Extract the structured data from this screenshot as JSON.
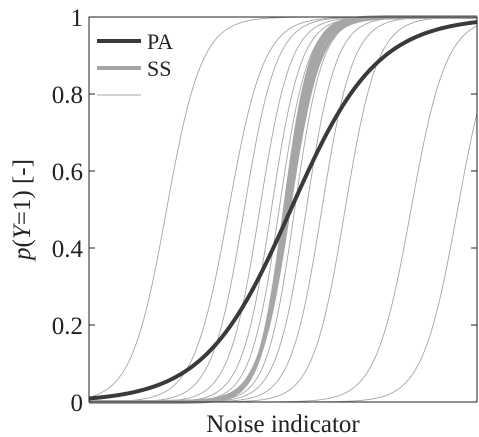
{
  "chart_data": {
    "type": "line",
    "title": "",
    "xlabel": "Noise indicator",
    "ylabel": "p(Y=1) [-]",
    "ylabel_parts": {
      "p": "p",
      "open": "(",
      "y": "Y",
      "eq": "=1) [-]"
    },
    "x_ticks_shown": false,
    "xlim": [
      0,
      1
    ],
    "ylim": [
      0,
      1
    ],
    "yticks": [
      0,
      0.2,
      0.4,
      0.6,
      0.8,
      1
    ],
    "ytick_labels": [
      "0",
      "0.2",
      "0.4",
      "0.6",
      "0.8",
      "1"
    ],
    "grid": false,
    "legend": {
      "placement": "top-left"
    },
    "series": [
      {
        "name": "PA",
        "kind": "logistic",
        "midpoint": 0.52,
        "slope": 9.0,
        "color": "#3a3a3a",
        "style": "thick"
      },
      {
        "name": "SS",
        "kind": "logistic",
        "midpoint": 0.51,
        "slope": 28.0,
        "color": "#a6a6a6",
        "style": "medium"
      },
      {
        "name": "",
        "kind": "logistic",
        "midpoint": 0.515,
        "slope": 26.0,
        "color": "#a6a6a6",
        "style": "medium"
      },
      {
        "name": "",
        "kind": "logistic",
        "midpoint": 0.505,
        "slope": 30.0,
        "color": "#a6a6a6",
        "style": "medium"
      },
      {
        "name": "",
        "kind": "logistic",
        "midpoint": 0.2,
        "slope": 22.0,
        "color": "#a6a6a6",
        "style": "thin"
      },
      {
        "name": "",
        "kind": "logistic",
        "midpoint": 0.36,
        "slope": 22.0,
        "color": "#a6a6a6",
        "style": "thin"
      },
      {
        "name": "",
        "kind": "logistic",
        "midpoint": 0.4,
        "slope": 24.0,
        "color": "#a6a6a6",
        "style": "thin"
      },
      {
        "name": "",
        "kind": "logistic",
        "midpoint": 0.44,
        "slope": 25.0,
        "color": "#a6a6a6",
        "style": "thin"
      },
      {
        "name": "",
        "kind": "logistic",
        "midpoint": 0.47,
        "slope": 26.0,
        "color": "#a6a6a6",
        "style": "thin"
      },
      {
        "name": "",
        "kind": "logistic",
        "midpoint": 0.49,
        "slope": 27.0,
        "color": "#a6a6a6",
        "style": "thin"
      },
      {
        "name": "",
        "kind": "logistic",
        "midpoint": 0.53,
        "slope": 28.0,
        "color": "#a6a6a6",
        "style": "thin"
      },
      {
        "name": "",
        "kind": "logistic",
        "midpoint": 0.56,
        "slope": 26.0,
        "color": "#a6a6a6",
        "style": "thin"
      },
      {
        "name": "",
        "kind": "logistic",
        "midpoint": 0.6,
        "slope": 25.0,
        "color": "#a6a6a6",
        "style": "thin"
      },
      {
        "name": "",
        "kind": "logistic",
        "midpoint": 0.66,
        "slope": 24.0,
        "color": "#a6a6a6",
        "style": "thin"
      },
      {
        "name": "",
        "kind": "logistic",
        "midpoint": 0.83,
        "slope": 22.0,
        "color": "#a6a6a6",
        "style": "thin"
      },
      {
        "name": "",
        "kind": "logistic",
        "midpoint": 0.95,
        "slope": 22.0,
        "color": "#a6a6a6",
        "style": "thin"
      }
    ],
    "legend_entries": [
      {
        "label": "PA",
        "color": "#3a3a3a",
        "style": "thick"
      },
      {
        "label": "SS",
        "color": "#a6a6a6",
        "style": "medium"
      },
      {
        "label": "",
        "color": "#a6a6a6",
        "style": "thin"
      }
    ]
  }
}
